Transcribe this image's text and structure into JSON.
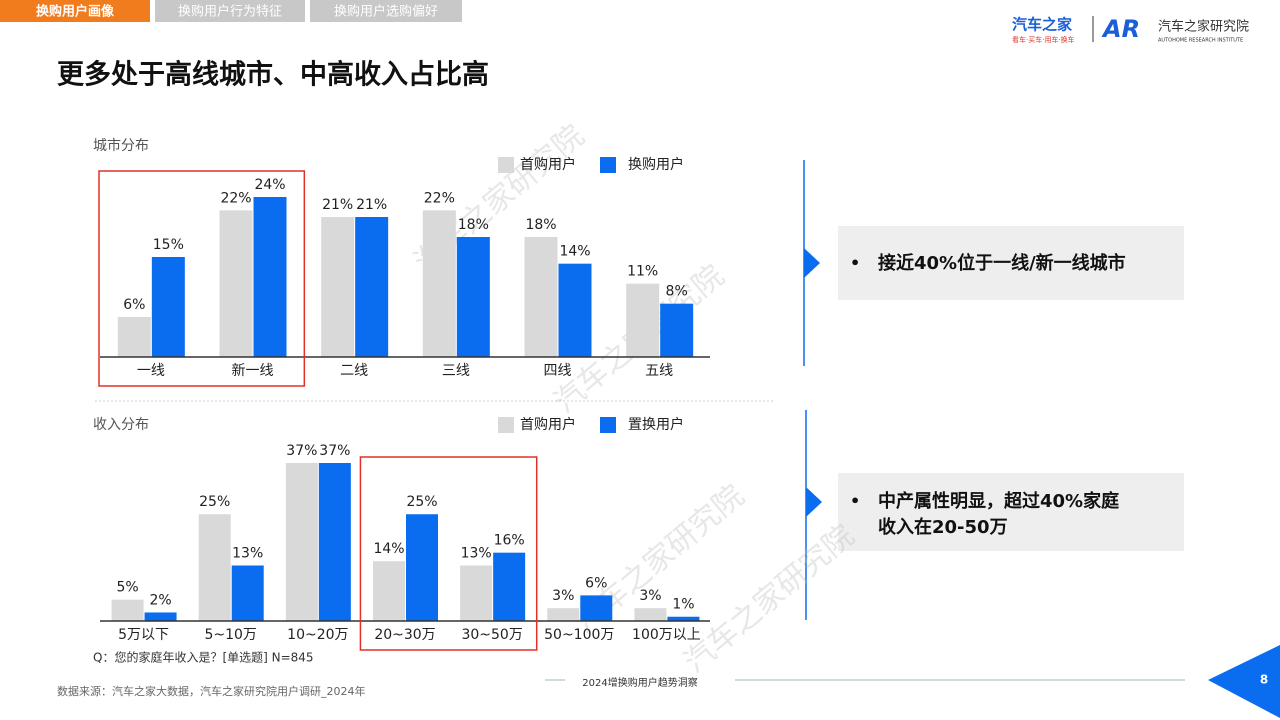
{
  "tabs": [
    "换购用户画像",
    "换购用户行为特征",
    "换购用户选购偏好"
  ],
  "logo": {
    "brand": "汽车之家",
    "slogan": "看车·买车·用车·换车",
    "mark": "AR",
    "institute": "汽车之家研究院",
    "institute_en": "AUTOHOME RESEARCH INSTITUTE"
  },
  "title": "更多处于高线城市、中高收入占比高",
  "watermark": "汽车之家研究院",
  "chart_data": [
    {
      "type": "bar",
      "title": "城市分布",
      "categories": [
        "一线",
        "新一线",
        "二线",
        "三线",
        "四线",
        "五线"
      ],
      "series": [
        {
          "name": "首购用户",
          "color": "#d9d9d9",
          "values": [
            6,
            22,
            21,
            22,
            18,
            11
          ],
          "value_labels": [
            "6%",
            "22%",
            "21%",
            "22%",
            "18%",
            "11%"
          ]
        },
        {
          "name": "换购用户",
          "color": "#0a6df0",
          "values": [
            15,
            24,
            21,
            18,
            14,
            8
          ],
          "value_labels": [
            "15%",
            "24%",
            "21%",
            "18%",
            "14%",
            "8%"
          ]
        }
      ]
    },
    {
      "type": "bar",
      "title": "收入分布",
      "categories": [
        "5万以下",
        "5~10万",
        "10~20万",
        "20~30万",
        "30~50万",
        "50~100万",
        "100万以上"
      ],
      "series": [
        {
          "name": "首购用户",
          "color": "#d9d9d9",
          "values": [
            5,
            25,
            37,
            14,
            13,
            3,
            3
          ],
          "value_labels": [
            "5%",
            "25%",
            "37%",
            "14%",
            "13%",
            "3%",
            "3%"
          ]
        },
        {
          "name": "置换用户",
          "color": "#0a6df0",
          "values": [
            2,
            13,
            37,
            25,
            16,
            6,
            1
          ],
          "value_labels": [
            "2%",
            "13%",
            "37%",
            "25%",
            "16%",
            "6%",
            "1%"
          ]
        }
      ],
      "note": "Q：您的家庭年收入是？[单选题] N=845"
    }
  ],
  "callouts": [
    [
      "接近40%位于一线/新一线城市"
    ],
    [
      "中产属性明显，超过40%家庭",
      "收入在20-50万"
    ]
  ],
  "source": "数据来源：汽车之家大数据，汽车之家研究院用户调研_2024年",
  "footer": "2024增换购用户趋势洞察",
  "page": 8
}
